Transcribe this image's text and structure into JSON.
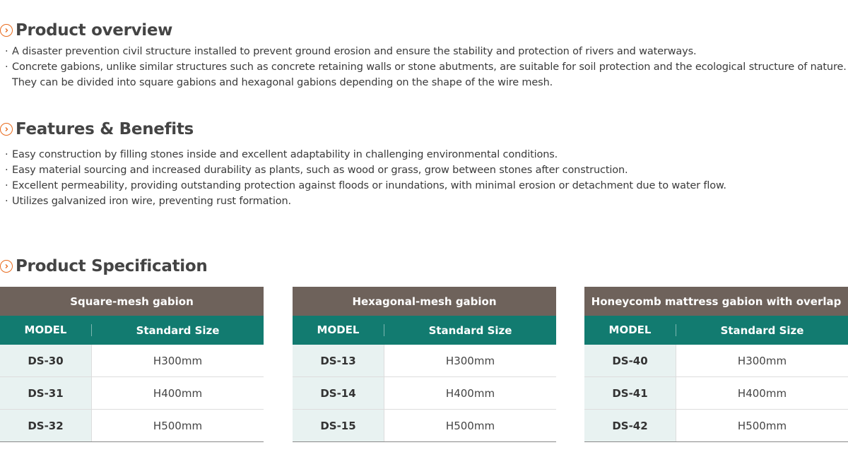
{
  "overview": {
    "title": "Product overview",
    "bullets": [
      "A disaster prevention civil structure installed to prevent ground erosion and ensure the stability and protection of rivers and waterways.",
      "Concrete gabions, unlike similar structures such as concrete retaining walls or stone abutments, are suitable for soil protection and the ecological structure of nature.\nThey can be divided into square gabions and hexagonal gabions depending on the shape of the wire mesh."
    ]
  },
  "features": {
    "title": "Features & Benefits",
    "bullets": [
      "Easy construction by filling stones inside and excellent adaptability in challenging environmental conditions.",
      "Easy material sourcing and increased durability as plants, such as wood or grass, grow between stones after construction.",
      "Excellent permeability, providing outstanding protection against floods or inundations, with minimal erosion or detachment due to water flow.",
      "Utilizes galvanized iron wire, preventing rust formation."
    ]
  },
  "spec": {
    "title": "Product Specification",
    "tables": [
      {
        "caption": "Square-mesh gabion",
        "col_model": "MODEL",
        "col_size": "Standard Size",
        "rows": [
          {
            "model": "DS-30",
            "size": "H300mm"
          },
          {
            "model": "DS-31",
            "size": "H400mm"
          },
          {
            "model": "DS-32",
            "size": "H500mm"
          }
        ]
      },
      {
        "caption": "Hexagonal-mesh gabion",
        "col_model": "MODEL",
        "col_size": "Standard Size",
        "rows": [
          {
            "model": "DS-13",
            "size": "H300mm"
          },
          {
            "model": "DS-14",
            "size": "H400mm"
          },
          {
            "model": "DS-15",
            "size": "H500mm"
          }
        ]
      },
      {
        "caption": "Honeycomb mattress gabion with overlap",
        "col_model": "MODEL",
        "col_size": "Standard Size",
        "rows": [
          {
            "model": "DS-40",
            "size": "H300mm"
          },
          {
            "model": "DS-41",
            "size": "H400mm"
          },
          {
            "model": "DS-42",
            "size": "H500mm"
          }
        ]
      }
    ]
  },
  "icons": {
    "section_icon": "chevron-right-circle-icon"
  },
  "colors": {
    "accent": "#e86a1c",
    "caption_bg": "#6e625b",
    "header_bg": "#127b70",
    "model_cell_bg": "#e8f2f1"
  }
}
